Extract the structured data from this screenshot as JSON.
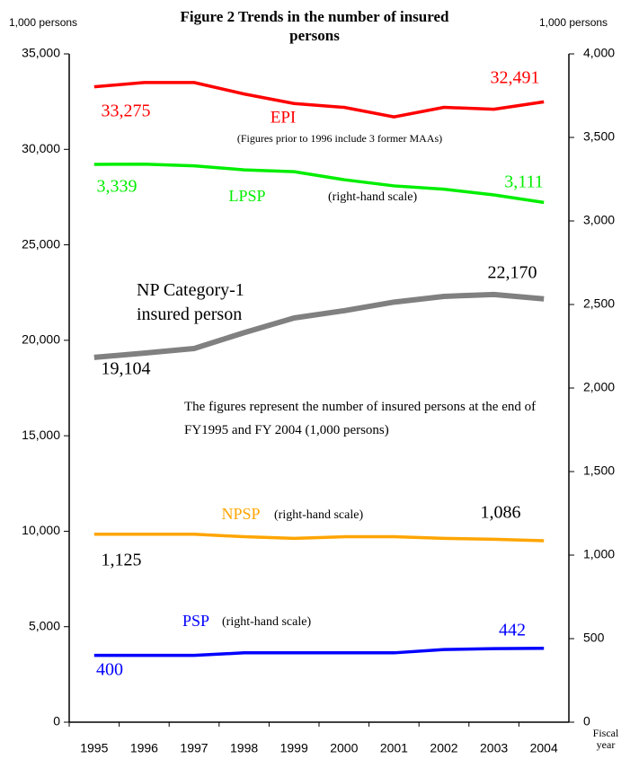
{
  "chart_data": {
    "type": "line",
    "title": "Figure 2  Trends in the number of insured persons",
    "y_label": "1,000 persons",
    "y2_label": "1,000 persons",
    "x_label": "Fiscal year",
    "categories": [
      "1995",
      "1996",
      "1997",
      "1998",
      "1999",
      "2000",
      "2001",
      "2002",
      "2003",
      "2004"
    ],
    "ylim": [
      0,
      35000
    ],
    "yticks": [
      0,
      {
        "value": 5000,
        "label": "5,000"
      },
      {
        "value": 10000,
        "label": "10,000"
      },
      {
        "value": 15000,
        "label": "15,000"
      },
      {
        "value": 20000,
        "label": "20,000"
      },
      {
        "value": 25000,
        "label": "25,000"
      },
      {
        "value": 30000,
        "label": "30,000"
      },
      {
        "value": 35000,
        "label": "35,000"
      }
    ],
    "y2lim": [
      0,
      4000
    ],
    "y2ticks": [
      0,
      500,
      {
        "value": 1000,
        "label": "1,000"
      },
      {
        "value": 1500,
        "label": "1,500"
      },
      {
        "value": 2000,
        "label": "2,000"
      },
      {
        "value": 2500,
        "label": "2,500"
      },
      {
        "value": 3000,
        "label": "3,000"
      },
      {
        "value": 3500,
        "label": "3,500"
      },
      {
        "value": 4000,
        "label": "4,000"
      }
    ],
    "series": [
      {
        "name": "EPI",
        "color": "#ff0000",
        "axis": "y",
        "values": [
          33275,
          33500,
          33500,
          32900,
          32400,
          32200,
          31700,
          32200,
          32100,
          32491
        ],
        "value_labels": [
          "33,275",
          null,
          null,
          null,
          null,
          null,
          null,
          null,
          null,
          "32,491"
        ]
      },
      {
        "name": "LPSP",
        "color": "#00ee00",
        "axis": "y2",
        "values": [
          3339,
          3340,
          3330,
          3306,
          3295,
          3247,
          3210,
          3190,
          3156,
          3111
        ],
        "value_labels": [
          "3,339",
          null,
          null,
          null,
          null,
          null,
          null,
          null,
          null,
          "3,111"
        ]
      },
      {
        "name": "NP Category-1 insured person",
        "color": "#808080",
        "axis": "y",
        "values": [
          19104,
          19330,
          19570,
          20400,
          21170,
          21550,
          22000,
          22300,
          22400,
          22170
        ],
        "value_labels": [
          "19,104",
          null,
          null,
          null,
          null,
          null,
          null,
          null,
          null,
          "22,170"
        ]
      },
      {
        "name": "NPSP",
        "color": "#ffa500",
        "axis": "y2",
        "values": [
          1125,
          1125,
          1125,
          1110,
          1100,
          1110,
          1110,
          1100,
          1095,
          1086
        ],
        "value_labels": [
          "1,125",
          null,
          null,
          null,
          null,
          null,
          null,
          null,
          null,
          "1,086"
        ]
      },
      {
        "name": "PSP",
        "color": "#0000ff",
        "axis": "y2",
        "values": [
          400,
          400,
          400,
          415,
          415,
          415,
          415,
          435,
          440,
          442
        ],
        "value_labels": [
          "400",
          null,
          null,
          null,
          null,
          null,
          null,
          null,
          null,
          "442"
        ]
      }
    ],
    "annotations": [
      "(Figures prior to 1996 include 3 former MAAs)",
      "(right-hand scale)",
      "(right-hand scale)",
      "(right-hand scale)",
      "The figures represent the number of insured persons at the end of FY1995 and FY 2004 (1,000 persons)"
    ]
  }
}
